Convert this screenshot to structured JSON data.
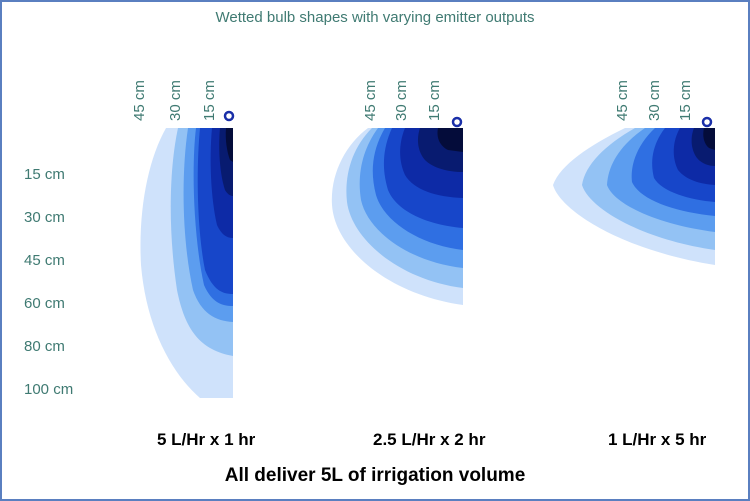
{
  "title": "Wetted bulb shapes with varying emitter outputs",
  "depth_labels": [
    "15 cm",
    "30 cm",
    "45 cm",
    "60 cm",
    "80 cm",
    "100 cm"
  ],
  "distance_labels": [
    "45 cm",
    "30 cm",
    "15 cm"
  ],
  "panels": [
    {
      "caption": "5 L/Hr x 1 hr"
    },
    {
      "caption": "2.5 L/Hr x 2 hr"
    },
    {
      "caption": "1 L/Hr x 5 hr"
    }
  ],
  "footer": "All deliver 5L of irrigation volume",
  "colors": {
    "text_teal": "#3f7a72",
    "bulb_shades": [
      "#cfe2fb",
      "#93c2f4",
      "#5c9def",
      "#2f6fe2",
      "#1746c9",
      "#0d2aa6",
      "#081b70",
      "#040c3a"
    ],
    "emitter": "#1a2fa8"
  }
}
